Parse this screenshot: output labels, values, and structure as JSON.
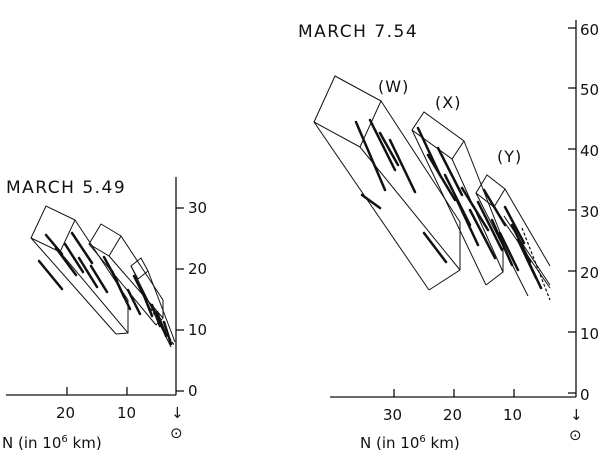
{
  "left_panel": {
    "title": "MARCH 5.49",
    "y_ticks": [
      "0",
      "10",
      "20",
      "30"
    ],
    "x_ticks": [
      "20",
      "10"
    ],
    "x_axis_label": "N (in 10",
    "x_axis_exp": "6",
    "x_axis_unit": " km)",
    "sun_arrow": "↓",
    "sun_symbol": "⊙"
  },
  "right_panel": {
    "title": "MARCH 7.54",
    "y_ticks": [
      "0",
      "10",
      "20",
      "30",
      "40",
      "50",
      "60"
    ],
    "x_ticks": [
      "30",
      "20",
      "10"
    ],
    "x_axis_label": "N (in 10",
    "x_axis_exp": "6",
    "x_axis_unit": " km)",
    "sun_arrow": "↓",
    "sun_symbol": "⊙",
    "region_labels": [
      "(W)",
      "(X)",
      "(Y)"
    ]
  }
}
